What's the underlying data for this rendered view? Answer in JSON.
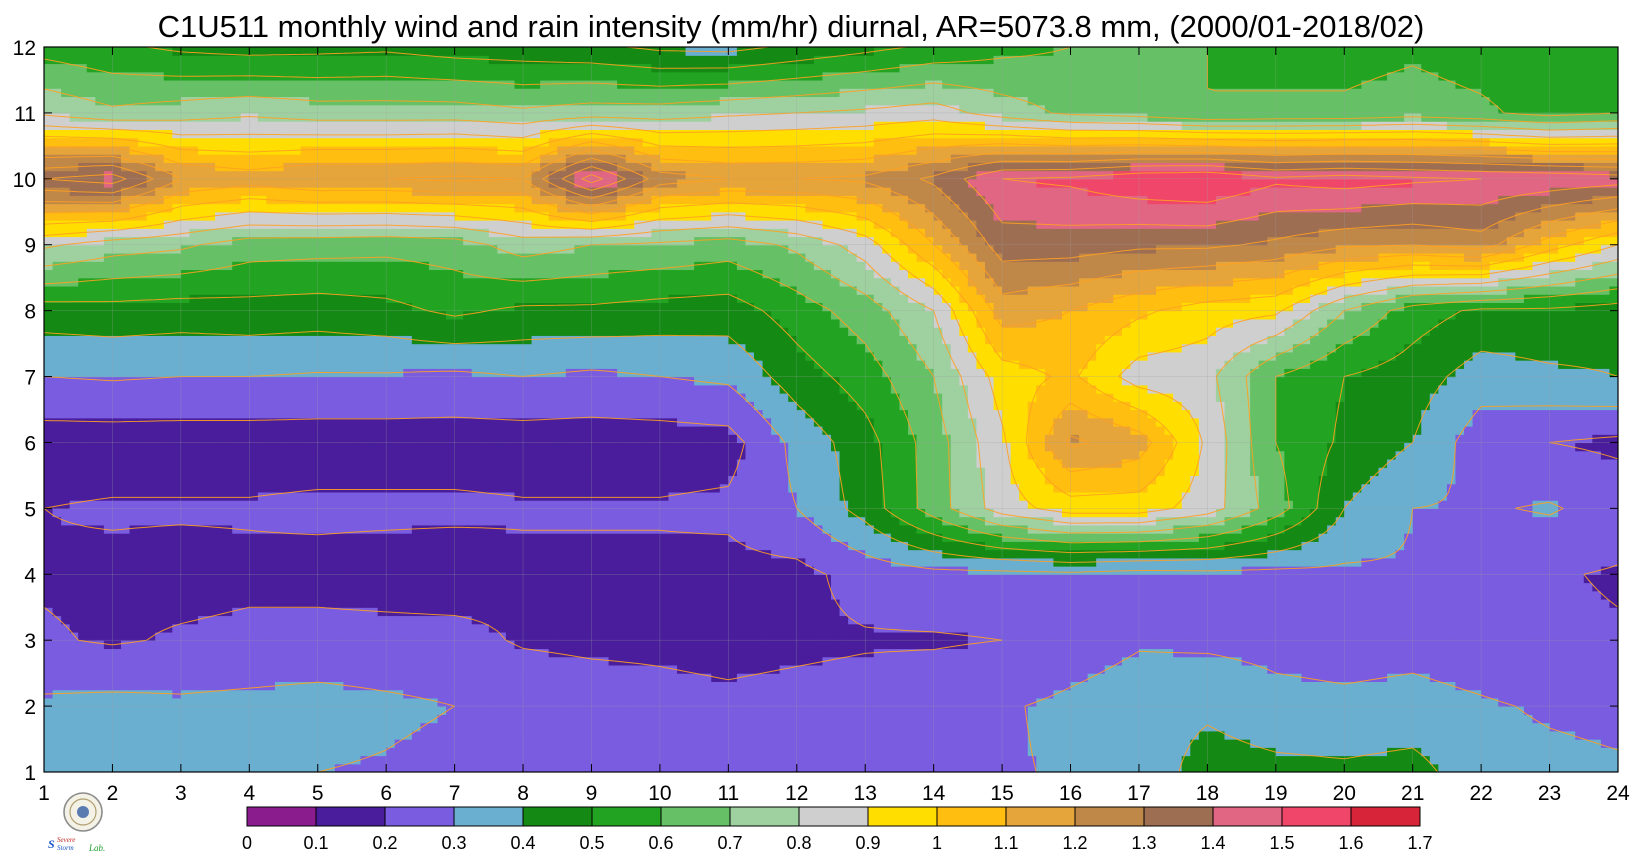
{
  "chart_data": {
    "type": "heatmap",
    "title": "C1U511 monthly wind and rain intensity (mm/hr) diurnal, AR=5073.8 mm, (2000/01-2018/02)",
    "xlabel": "",
    "ylabel": "",
    "x_ticks": [
      "1",
      "2",
      "3",
      "4",
      "5",
      "6",
      "7",
      "8",
      "9",
      "10",
      "11",
      "12",
      "13",
      "14",
      "15",
      "16",
      "17",
      "18",
      "19",
      "20",
      "21",
      "22",
      "23",
      "24"
    ],
    "y_ticks": [
      "1",
      "2",
      "3",
      "4",
      "5",
      "6",
      "7",
      "8",
      "9",
      "10",
      "11",
      "12"
    ],
    "xlim": [
      1,
      24
    ],
    "ylim": [
      1,
      12
    ],
    "grid": true,
    "colorbar": {
      "position": "bottom",
      "levels": [
        0,
        0.1,
        0.2,
        0.3,
        0.4,
        0.5,
        0.6,
        0.7,
        0.8,
        0.9,
        1,
        1.1,
        1.2,
        1.3,
        1.4,
        1.5,
        1.6,
        1.7
      ],
      "tick_labels": [
        "0",
        "0.1",
        "0.2",
        "0.3",
        "0.4",
        "0.5",
        "0.6",
        "0.7",
        "0.8",
        "0.9",
        "1",
        "1.1",
        "1.2",
        "1.3",
        "1.4",
        "1.5",
        "1.6",
        "1.7"
      ],
      "colors": [
        "#8a1c8e",
        "#4a1d9c",
        "#7a5ce0",
        "#6aaed0",
        "#148a14",
        "#22a422",
        "#66c066",
        "#9fd09f",
        "#cfcfcf",
        "#ffde00",
        "#ffbe10",
        "#e6a53a",
        "#c08848",
        "#9e6e52",
        "#e06684",
        "#f0466a",
        "#d82438"
      ]
    },
    "contour_line_color": "#ffa020",
    "rows_y": [
      1,
      2,
      3,
      4,
      5,
      6,
      7,
      8,
      9,
      10,
      11,
      12
    ],
    "cols_x": [
      1,
      2,
      3,
      4,
      5,
      6,
      7,
      8,
      9,
      10,
      11,
      12,
      13,
      14,
      15,
      16,
      17,
      18,
      19,
      20,
      21,
      22,
      23,
      24
    ],
    "z": [
      [
        0.31,
        0.32,
        0.33,
        0.31,
        0.3,
        0.29,
        0.27,
        0.25,
        0.24,
        0.23,
        0.23,
        0.24,
        0.25,
        0.27,
        0.29,
        0.31,
        0.33,
        0.45,
        0.43,
        0.42,
        0.44,
        0.33,
        0.32,
        0.31
      ],
      [
        0.32,
        0.33,
        0.32,
        0.33,
        0.34,
        0.32,
        0.3,
        0.27,
        0.25,
        0.23,
        0.22,
        0.23,
        0.24,
        0.26,
        0.29,
        0.32,
        0.35,
        0.38,
        0.33,
        0.32,
        0.33,
        0.31,
        0.29,
        0.28
      ],
      [
        0.21,
        0.19,
        0.21,
        0.22,
        0.23,
        0.23,
        0.23,
        0.19,
        0.18,
        0.18,
        0.17,
        0.18,
        0.19,
        0.19,
        0.2,
        0.25,
        0.29,
        0.28,
        0.27,
        0.26,
        0.27,
        0.25,
        0.22,
        0.21
      ],
      [
        0.19,
        0.18,
        0.17,
        0.18,
        0.17,
        0.16,
        0.15,
        0.18,
        0.18,
        0.18,
        0.17,
        0.17,
        0.24,
        0.27,
        0.27,
        0.28,
        0.26,
        0.27,
        0.27,
        0.28,
        0.29,
        0.22,
        0.21,
        0.19
      ],
      [
        0.2,
        0.21,
        0.21,
        0.21,
        0.22,
        0.22,
        0.22,
        0.21,
        0.21,
        0.21,
        0.22,
        0.3,
        0.44,
        0.65,
        0.85,
        0.95,
        0.95,
        0.85,
        0.65,
        0.4,
        0.3,
        0.29,
        0.31,
        0.26
      ],
      [
        0.15,
        0.15,
        0.15,
        0.15,
        0.15,
        0.15,
        0.15,
        0.15,
        0.15,
        0.15,
        0.16,
        0.33,
        0.46,
        0.65,
        0.88,
        1.22,
        1.15,
        0.88,
        0.6,
        0.48,
        0.4,
        0.24,
        0.2,
        0.18
      ],
      [
        0.3,
        0.31,
        0.3,
        0.3,
        0.29,
        0.29,
        0.28,
        0.3,
        0.28,
        0.3,
        0.32,
        0.45,
        0.55,
        0.7,
        0.95,
        1.02,
        0.85,
        0.83,
        0.6,
        0.5,
        0.45,
        0.35,
        0.38,
        0.4
      ],
      [
        0.45,
        0.46,
        0.45,
        0.46,
        0.45,
        0.47,
        0.52,
        0.48,
        0.48,
        0.46,
        0.45,
        0.55,
        0.65,
        0.8,
        1.15,
        1.1,
        1.02,
        0.95,
        0.92,
        0.7,
        0.55,
        0.48,
        0.48,
        0.45
      ],
      [
        0.82,
        0.75,
        0.72,
        0.65,
        0.64,
        0.63,
        0.65,
        0.75,
        0.7,
        0.68,
        0.65,
        0.72,
        0.85,
        1.1,
        1.35,
        1.35,
        1.32,
        1.32,
        1.28,
        1.22,
        1.2,
        1.25,
        1.05,
        0.9
      ],
      [
        1.4,
        1.45,
        1.2,
        1.15,
        1.2,
        1.2,
        1.22,
        1.2,
        1.55,
        1.25,
        1.2,
        1.2,
        1.22,
        1.32,
        1.5,
        1.52,
        1.58,
        1.6,
        1.52,
        1.55,
        1.52,
        1.5,
        1.48,
        1.45
      ],
      [
        0.78,
        0.72,
        0.75,
        0.78,
        0.75,
        0.75,
        0.75,
        0.72,
        0.75,
        0.75,
        0.78,
        0.8,
        0.82,
        0.85,
        0.75,
        0.68,
        0.65,
        0.6,
        0.62,
        0.62,
        0.65,
        0.62,
        0.56,
        0.6
      ],
      [
        0.56,
        0.52,
        0.48,
        0.46,
        0.47,
        0.48,
        0.45,
        0.44,
        0.42,
        0.38,
        0.37,
        0.42,
        0.47,
        0.52,
        0.57,
        0.6,
        0.62,
        0.6,
        0.56,
        0.56,
        0.58,
        0.55,
        0.53,
        0.52
      ]
    ]
  },
  "logo": {
    "text_line1": "Severe",
    "text_line2": "Storm",
    "text_lab": "Lab."
  }
}
